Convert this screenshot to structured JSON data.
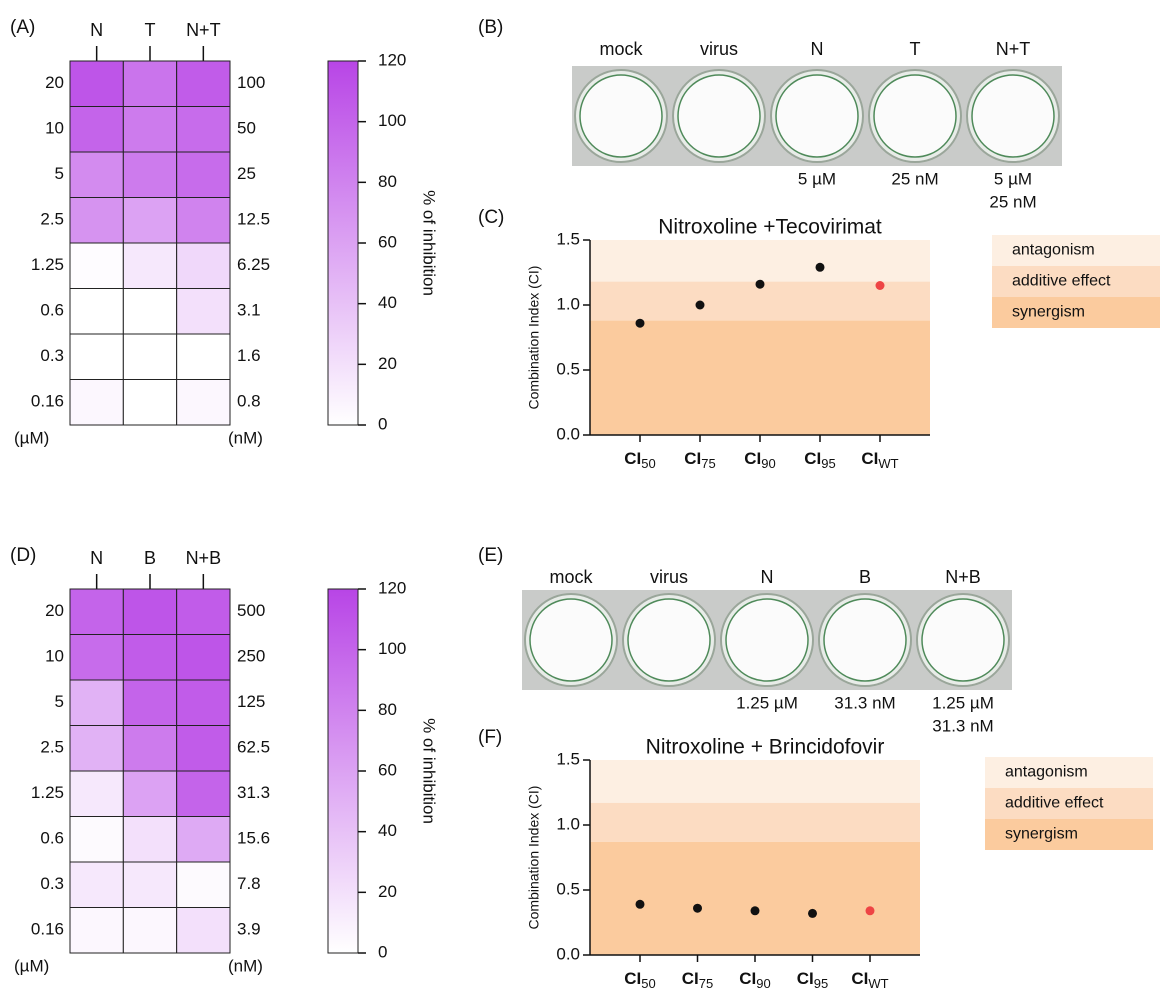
{
  "chart_data": [
    {
      "type": "heatmap",
      "panel_label": "(A)",
      "columns": [
        "N",
        "T",
        "N+T"
      ],
      "row_labels": [
        "20",
        "10",
        "5",
        "2.5",
        "1.25",
        "0.6",
        "0.3",
        "0.16"
      ],
      "row_labels_right": [
        "100",
        "50",
        "25",
        "12.5",
        "6.25",
        "3.1",
        "1.6",
        "0.8"
      ],
      "unit_left": "(µM)",
      "unit_right": "(nM)",
      "values": [
        [
          110,
          90,
          105
        ],
        [
          100,
          85,
          95
        ],
        [
          75,
          85,
          95
        ],
        [
          70,
          60,
          80
        ],
        [
          2,
          15,
          25
        ],
        [
          0,
          0,
          20
        ],
        [
          0,
          0,
          0
        ],
        [
          5,
          0,
          5
        ]
      ],
      "color": "#b845e6",
      "colorbar_label": "% of inhibition",
      "zlim": [
        0,
        120
      ],
      "zticks": [
        0,
        20,
        40,
        60,
        80,
        100,
        120
      ]
    },
    {
      "type": "scatter",
      "panel_label": "(C)",
      "title": "Nitroxoline +Tecovirimat",
      "ylabel": "Combination Index  (CI)",
      "categories": [
        [
          "CI",
          "50"
        ],
        [
          "CI",
          "75"
        ],
        [
          "CI",
          "90"
        ],
        [
          "CI",
          "95"
        ],
        [
          "CI",
          "WT"
        ]
      ],
      "values": [
        0.86,
        1.0,
        1.16,
        1.29,
        1.15
      ],
      "colors": [
        "#111111",
        "#111111",
        "#111111",
        "#111111",
        "#ee4444"
      ],
      "ylim": [
        0,
        1.5
      ],
      "yticks": [
        {
          "value": 0,
          "label": "0.0"
        },
        {
          "value": 0.5,
          "label": "0.5"
        },
        {
          "value": 1,
          "label": "1.0"
        },
        {
          "value": 1.5,
          "label": "1.5"
        }
      ],
      "bands": [
        {
          "name": "antagonism",
          "range": [
            1.18,
            1.5
          ],
          "color": "#fdefe2"
        },
        {
          "name": "additive effect",
          "range": [
            0.88,
            1.18
          ],
          "color": "#fcdcc2"
        },
        {
          "name": "synergism",
          "range": [
            0,
            0.88
          ],
          "color": "#fbcb9e"
        }
      ]
    },
    {
      "type": "heatmap",
      "panel_label": "(D)",
      "columns": [
        "N",
        "B",
        "N+B"
      ],
      "row_labels": [
        "20",
        "10",
        "5",
        "2.5",
        "1.25",
        "0.6",
        "0.3",
        "0.16"
      ],
      "row_labels_right": [
        "500",
        "250",
        "125",
        "62.5",
        "31.3",
        "15.6",
        "7.8",
        "3.9"
      ],
      "unit_left": "(µM)",
      "unit_right": "(nM)",
      "values": [
        [
          100,
          110,
          105
        ],
        [
          95,
          105,
          110
        ],
        [
          50,
          100,
          105
        ],
        [
          50,
          85,
          105
        ],
        [
          15,
          60,
          100
        ],
        [
          3,
          20,
          55
        ],
        [
          15,
          15,
          3
        ],
        [
          5,
          5,
          20
        ]
      ],
      "color": "#b845e6",
      "colorbar_label": "% of inhibition",
      "zlim": [
        0,
        120
      ],
      "zticks": [
        0,
        20,
        40,
        60,
        80,
        100,
        120
      ]
    },
    {
      "type": "scatter",
      "panel_label": "(F)",
      "title": "Nitroxoline + Brincidofovir",
      "ylabel": "Combination Index  (CI)",
      "categories": [
        [
          "CI",
          "50"
        ],
        [
          "CI",
          "75"
        ],
        [
          "CI",
          "90"
        ],
        [
          "CI",
          "95"
        ],
        [
          "CI",
          "WT"
        ]
      ],
      "values": [
        0.39,
        0.36,
        0.34,
        0.32,
        0.34
      ],
      "colors": [
        "#111111",
        "#111111",
        "#111111",
        "#111111",
        "#ee4444"
      ],
      "ylim": [
        0,
        1.5
      ],
      "yticks": [
        {
          "value": 0,
          "label": "0.0"
        },
        {
          "value": 0.5,
          "label": "0.5"
        },
        {
          "value": 1,
          "label": "1.0"
        },
        {
          "value": 1.5,
          "label": "1.5"
        }
      ],
      "bands": [
        {
          "name": "antagonism",
          "range": [
            1.17,
            1.5
          ],
          "color": "#fdefe2"
        },
        {
          "name": "additive effect",
          "range": [
            0.87,
            1.17
          ],
          "color": "#fcdcc2"
        },
        {
          "name": "synergism",
          "range": [
            0,
            0.87
          ],
          "color": "#fbcb9e"
        }
      ]
    }
  ],
  "well_panels": [
    {
      "panel_label": "(B)",
      "wells": [
        {
          "label": "mock"
        },
        {
          "label": "virus"
        },
        {
          "label": "N",
          "dose": [
            "5 µM"
          ]
        },
        {
          "label": "T",
          "dose": [
            "25 nM"
          ]
        },
        {
          "label": "N+T",
          "dose": [
            "5 µM",
            "25 nM"
          ]
        }
      ]
    },
    {
      "panel_label": "(E)",
      "wells": [
        {
          "label": "mock"
        },
        {
          "label": "virus"
        },
        {
          "label": "N",
          "dose": [
            "1.25 µM"
          ]
        },
        {
          "label": "B",
          "dose": [
            "31.3 nM"
          ]
        },
        {
          "label": "N+B",
          "dose": [
            "1.25 µM",
            "31.3 nM"
          ]
        }
      ]
    }
  ]
}
